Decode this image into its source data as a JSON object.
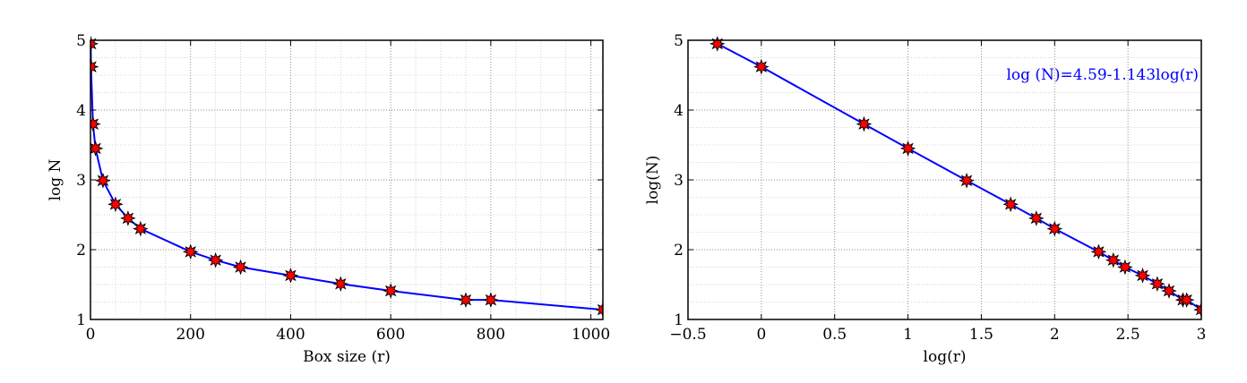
{
  "chart_data": [
    {
      "type": "line",
      "title": "",
      "xlabel": "Box size (r)",
      "ylabel": "log N",
      "xlim": [
        0,
        1024
      ],
      "ylim": [
        1,
        5
      ],
      "grid": true,
      "xticks": [
        "0",
        "200",
        "400",
        "600",
        "800",
        "1000"
      ],
      "yticks": [
        "1",
        "2",
        "3",
        "4",
        "5"
      ],
      "line_color": "#0000ff",
      "marker_color": "#ff0000",
      "x": [
        0.5,
        1,
        5,
        10,
        25,
        50,
        75,
        100,
        200,
        250,
        300,
        400,
        500,
        600,
        750,
        800,
        1024
      ],
      "y": [
        4.95,
        4.62,
        3.8,
        3.45,
        2.99,
        2.65,
        2.45,
        2.3,
        1.97,
        1.85,
        1.75,
        1.63,
        1.51,
        1.41,
        1.28,
        1.28,
        1.14
      ]
    },
    {
      "type": "line",
      "title": "",
      "xlabel": "log(r)",
      "ylabel": "log(N)",
      "xlim": [
        -0.5,
        3
      ],
      "ylim": [
        1,
        5
      ],
      "grid": true,
      "xticks": [
        "−0.5",
        "0",
        "0.5",
        "1",
        "1.5",
        "2",
        "2.5",
        "3"
      ],
      "yticks": [
        "1",
        "2",
        "3",
        "4",
        "5"
      ],
      "annotation": "log (N)=4.59-1.143log(r)",
      "annotation_color": "#0000ff",
      "line_color": "#0000ff",
      "marker_color": "#ff0000",
      "x": [
        -0.3,
        0,
        0.7,
        1,
        1.4,
        1.7,
        1.875,
        2,
        2.3,
        2.4,
        2.48,
        2.6,
        2.7,
        2.78,
        2.875,
        2.9,
        3.0
      ],
      "y": [
        4.95,
        4.62,
        3.8,
        3.45,
        2.99,
        2.65,
        2.45,
        2.3,
        1.97,
        1.85,
        1.75,
        1.63,
        1.51,
        1.41,
        1.28,
        1.28,
        1.14
      ]
    }
  ]
}
